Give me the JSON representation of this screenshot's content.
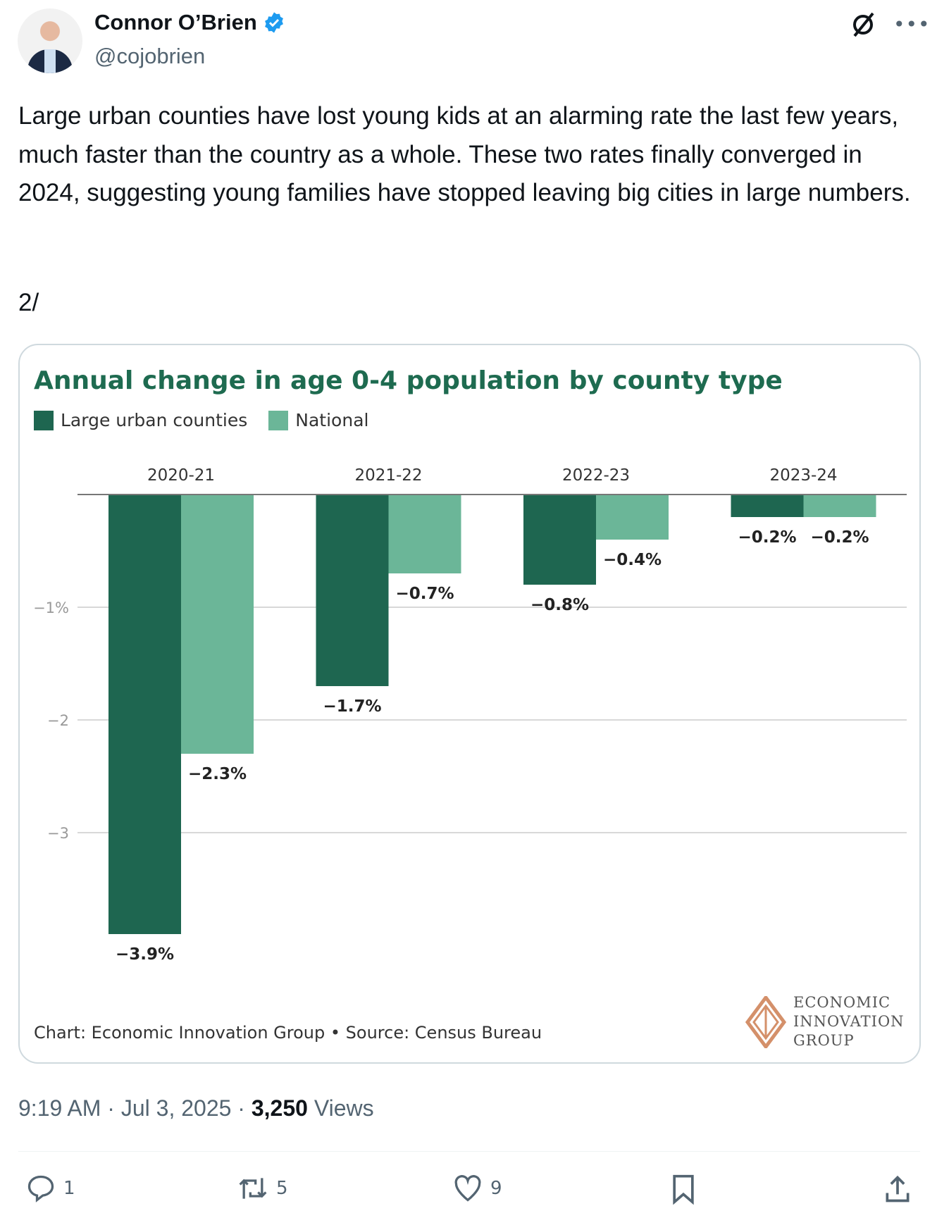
{
  "author": {
    "name": "Connor O’Brien",
    "handle": "@cojobrien",
    "verified": true
  },
  "post": {
    "text": "Large urban counties have lost young kids at an alarming rate the last few years, much faster than the country as a whole. These two rates finally converged in 2024, suggesting young families have stopped leaving big cities in large numbers.",
    "thread_marker": "2/"
  },
  "chart_data": {
    "type": "bar",
    "title": "Annual change in age 0-4 population by county type",
    "categories": [
      "2020-21",
      "2021-22",
      "2022-23",
      "2023-24"
    ],
    "series": [
      {
        "name": "Large urban counties",
        "color": "#1e6650",
        "values": [
          -3.9,
          -1.7,
          -0.8,
          -0.2
        ],
        "labels": [
          "−3.9%",
          "−1.7%",
          "−0.8%",
          "−0.2%"
        ]
      },
      {
        "name": "National",
        "color": "#6bb698",
        "values": [
          -2.3,
          -0.7,
          -0.4,
          -0.2
        ],
        "labels": [
          "−2.3%",
          "−0.7%",
          "−0.4%",
          "−0.2%"
        ]
      }
    ],
    "yticks": [
      {
        "v": -1,
        "label": "−1%"
      },
      {
        "v": -2,
        "label": "−2"
      },
      {
        "v": -3,
        "label": "−3"
      }
    ],
    "ylim": [
      -4.2,
      0
    ],
    "grid": true,
    "legend": "top-left",
    "source": "Chart: Economic Innovation Group • Source: Census Bureau",
    "logo": [
      "ECONOMIC",
      "INNOVATION",
      "GROUP"
    ]
  },
  "meta": {
    "time": "9:19 AM",
    "date": "Jul 3, 2025",
    "views": "3,250",
    "views_label": "Views"
  },
  "actions": {
    "replies": "1",
    "reposts": "5",
    "likes": "9"
  }
}
